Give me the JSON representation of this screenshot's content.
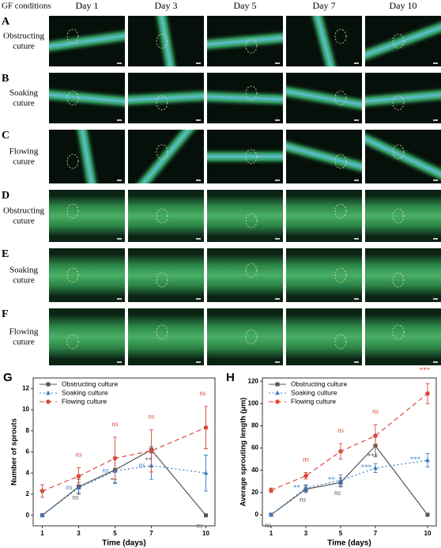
{
  "panels": {
    "header": "GF conditions",
    "days": [
      "Day 1",
      "Day 3",
      "Day 5",
      "Day 7",
      "Day 10"
    ],
    "rows": [
      {
        "letter": "A",
        "label": [
          "Obstructing",
          "cuture"
        ]
      },
      {
        "letter": "B",
        "label": [
          "Soaking",
          "cuture"
        ]
      },
      {
        "letter": "C",
        "label": [
          "Flowing",
          "cuture"
        ]
      },
      {
        "letter": "D",
        "label": [
          "Obstructing",
          "cuture"
        ]
      },
      {
        "letter": "E",
        "label": [
          "Soaking",
          "cuture"
        ]
      },
      {
        "letter": "F",
        "label": [
          "Flowing",
          "cuture"
        ]
      }
    ]
  },
  "chart_data": [
    {
      "type": "line",
      "label": "G",
      "x_label": "Time (days)",
      "y_label": "Number of sprouts",
      "x": [
        1,
        3,
        5,
        7,
        10
      ],
      "xlim": [
        0.5,
        10.5
      ],
      "xticks": [
        1,
        3,
        5,
        7,
        10
      ],
      "ylim": [
        -1,
        13
      ],
      "yticks": [
        0,
        2,
        4,
        6,
        8,
        10,
        12
      ],
      "legend": "top-left",
      "series": [
        {
          "name": "Obstructing culture",
          "color": "#555555",
          "marker": "square",
          "dash": "solid",
          "values": [
            0,
            2.7,
            4.3,
            6.2,
            0
          ],
          "errors": [
            0,
            0.7,
            1.2,
            0.3,
            0
          ],
          "annotations": [
            null,
            "ns",
            "*",
            "**",
            "ns"
          ]
        },
        {
          "name": "Soaking culture",
          "color": "#3a7cc4",
          "marker": "triangle",
          "dash": "dotted",
          "values": [
            0,
            2.6,
            4.2,
            4.7,
            4.0
          ],
          "errors": [
            0,
            0.5,
            1.2,
            1.3,
            1.7
          ],
          "annotations": [
            null,
            "ns",
            "ns",
            "ns",
            null
          ]
        },
        {
          "name": "Flowing culture",
          "color": "#d94a3c",
          "marker": "circle",
          "dash": "dashed",
          "values": [
            2.3,
            3.7,
            5.4,
            6.1,
            8.3
          ],
          "errors": [
            0.6,
            0.8,
            2.0,
            2.0,
            2.0
          ],
          "annotations": [
            null,
            "ns",
            "ns",
            "ns",
            "ns"
          ]
        }
      ]
    },
    {
      "type": "line",
      "label": "H",
      "x_label": "Time (days)",
      "y_label": "Average sprouting length (μm)",
      "x": [
        1,
        3,
        5,
        7,
        10
      ],
      "xlim": [
        0.5,
        10.5
      ],
      "xticks": [
        1,
        3,
        5,
        7,
        10
      ],
      "ylim": [
        -10,
        123
      ],
      "yticks": [
        0,
        20,
        40,
        60,
        80,
        100,
        120
      ],
      "legend": "top-left",
      "series": [
        {
          "name": "Obstructing culture",
          "color": "#555555",
          "marker": "square",
          "dash": "solid",
          "values": [
            0,
            23,
            29,
            62,
            0
          ],
          "errors": [
            0,
            3,
            4,
            10,
            0
          ],
          "annotations": [
            "ns",
            "ns",
            "ns",
            "***",
            null
          ]
        },
        {
          "name": "Soaking culture",
          "color": "#3a7cc4",
          "marker": "triangle",
          "dash": "dotted",
          "values": [
            0,
            24,
            31,
            42,
            49
          ],
          "errors": [
            0,
            3,
            5,
            4,
            6
          ],
          "annotations": [
            null,
            "**",
            "**",
            "***",
            "***"
          ]
        },
        {
          "name": "Flowing culture",
          "color": "#d94a3c",
          "marker": "circle",
          "dash": "dashed",
          "values": [
            22,
            35,
            57,
            71,
            109
          ],
          "errors": [
            2,
            3,
            7,
            10,
            9
          ],
          "annotations": [
            null,
            "ns",
            "ns",
            "ns",
            "***"
          ]
        }
      ]
    }
  ]
}
